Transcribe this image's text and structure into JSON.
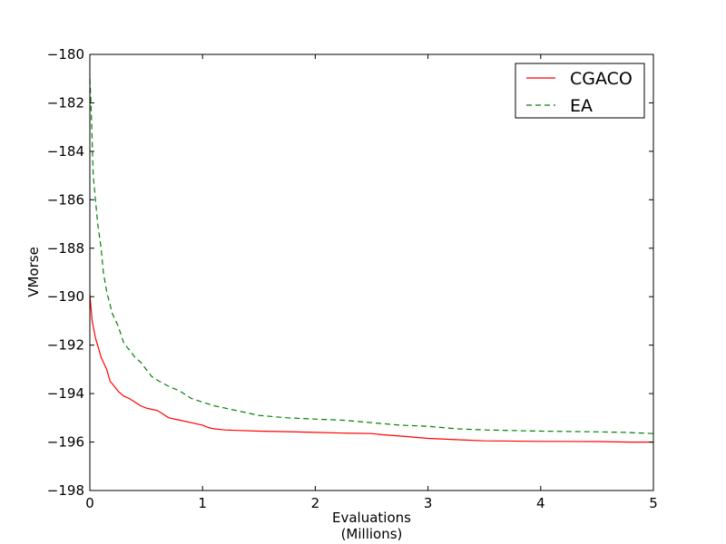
{
  "chart_data": {
    "type": "line",
    "xlabel": "Evaluations",
    "xlabel_sub": "(Millions)",
    "ylabel": "VMorse",
    "xlim": [
      0,
      5
    ],
    "ylim": [
      -198,
      -180
    ],
    "xticks": [
      0,
      1,
      2,
      3,
      4,
      5
    ],
    "xtick_labels": [
      "0",
      "1",
      "2",
      "3",
      "4",
      "5"
    ],
    "yticks": [
      -198,
      -196,
      -194,
      -192,
      -190,
      -188,
      -186,
      -184,
      -182,
      -180
    ],
    "ytick_labels": [
      "−198",
      "−196",
      "−194",
      "−192",
      "−190",
      "−188",
      "−186",
      "−184",
      "−182",
      "−180"
    ],
    "grid": false,
    "legend_position": "top-right",
    "series": [
      {
        "name": "CGACO",
        "color": "#ff0000",
        "style": "solid",
        "x": [
          0,
          0.02,
          0.05,
          0.1,
          0.15,
          0.18,
          0.2,
          0.25,
          0.3,
          0.35,
          0.4,
          0.45,
          0.5,
          0.55,
          0.6,
          0.65,
          0.7,
          0.8,
          0.9,
          1.0,
          1.05,
          1.1,
          1.2,
          1.3,
          1.5,
          1.75,
          2.0,
          2.25,
          2.5,
          2.6,
          2.75,
          3.0,
          3.25,
          3.5,
          4.0,
          4.5,
          4.8,
          5.0
        ],
        "y": [
          -189.9,
          -191.0,
          -191.7,
          -192.5,
          -193.0,
          -193.5,
          -193.6,
          -193.9,
          -194.1,
          -194.2,
          -194.35,
          -194.5,
          -194.6,
          -194.65,
          -194.7,
          -194.85,
          -195.0,
          -195.1,
          -195.2,
          -195.3,
          -195.4,
          -195.45,
          -195.5,
          -195.52,
          -195.55,
          -195.57,
          -195.6,
          -195.63,
          -195.65,
          -195.7,
          -195.75,
          -195.85,
          -195.9,
          -195.95,
          -195.97,
          -195.98,
          -196.0,
          -196.0
        ]
      },
      {
        "name": "EA",
        "color": "#008000",
        "style": "dashed",
        "x": [
          0,
          0.01,
          0.02,
          0.03,
          0.05,
          0.07,
          0.1,
          0.12,
          0.15,
          0.2,
          0.25,
          0.3,
          0.35,
          0.4,
          0.45,
          0.5,
          0.55,
          0.6,
          0.7,
          0.8,
          0.9,
          1.0,
          1.1,
          1.2,
          1.3,
          1.5,
          1.75,
          2.0,
          2.25,
          2.5,
          2.75,
          3.0,
          3.25,
          3.5,
          4.0,
          4.5,
          4.75,
          5.0
        ],
        "y": [
          -181.0,
          -182.0,
          -183.5,
          -185.0,
          -186.0,
          -187.0,
          -188.0,
          -189.0,
          -189.8,
          -190.7,
          -191.2,
          -191.9,
          -192.2,
          -192.5,
          -192.7,
          -193.0,
          -193.3,
          -193.45,
          -193.7,
          -193.9,
          -194.2,
          -194.35,
          -194.5,
          -194.6,
          -194.7,
          -194.9,
          -195.0,
          -195.05,
          -195.1,
          -195.2,
          -195.3,
          -195.35,
          -195.45,
          -195.5,
          -195.55,
          -195.58,
          -195.6,
          -195.65
        ]
      }
    ]
  }
}
